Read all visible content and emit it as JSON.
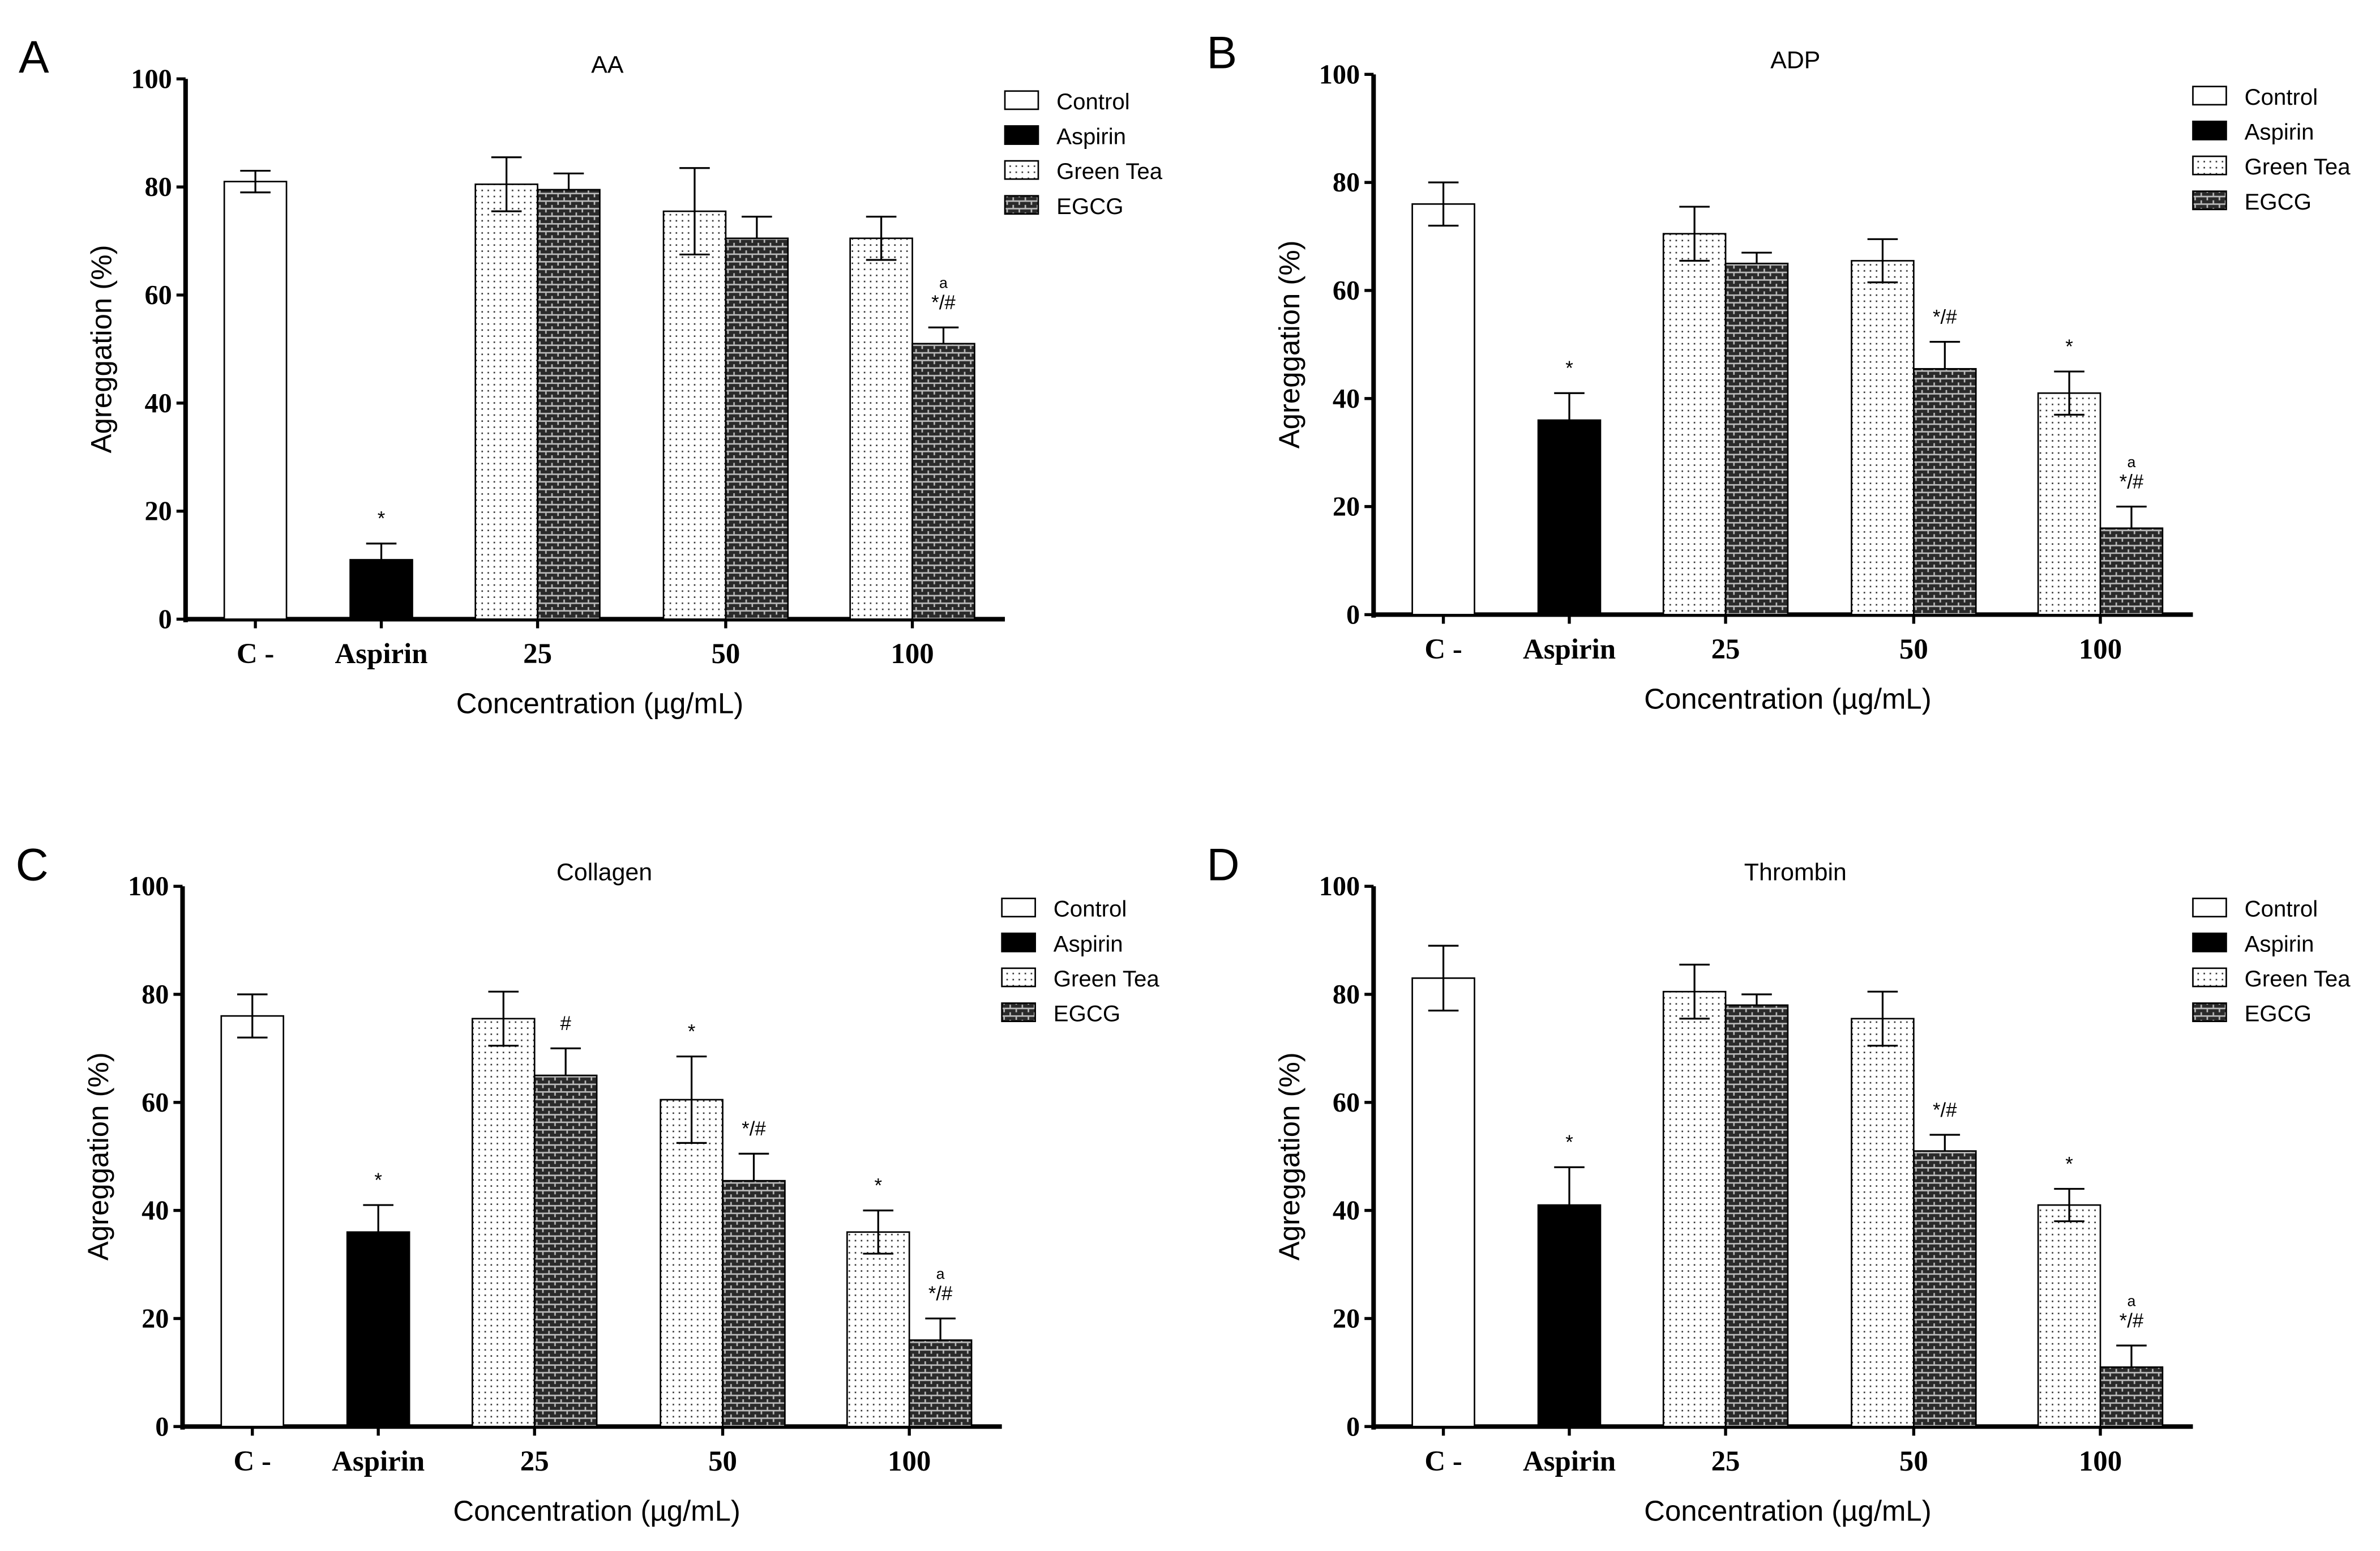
{
  "chart_data": [
    {
      "type": "bar",
      "panel_label": "A",
      "title": "AA",
      "xlabel": "Concentration (µg/mL)",
      "ylabel": "Agreggation (%)",
      "ylim": [
        0,
        100
      ],
      "yticks": [
        "0",
        "20",
        "40",
        "60",
        "80",
        "100"
      ],
      "categories": [
        "C -",
        "Aspirin",
        "25",
        "50",
        "100"
      ],
      "legend": [
        "Control",
        "Aspirin",
        "Green Tea",
        "EGCG"
      ],
      "legend_position": "top-right",
      "bars": [
        {
          "category": "C -",
          "series": "Control",
          "value": 81,
          "error": 2,
          "annotation": ""
        },
        {
          "category": "Aspirin",
          "series": "Aspirin",
          "value": 11,
          "error": 3,
          "annotation": "*"
        },
        {
          "category": "25",
          "series": "Green Tea",
          "value": 80.5,
          "error": 5,
          "annotation": ""
        },
        {
          "category": "25",
          "series": "EGCG",
          "value": 79.5,
          "error": 3,
          "annotation": ""
        },
        {
          "category": "50",
          "series": "Green Tea",
          "value": 75.5,
          "error": 8,
          "annotation": ""
        },
        {
          "category": "50",
          "series": "EGCG",
          "value": 70.5,
          "error": 4,
          "annotation": ""
        },
        {
          "category": "100",
          "series": "Green Tea",
          "value": 70.5,
          "error": 4,
          "annotation": ""
        },
        {
          "category": "100",
          "series": "EGCG",
          "value": 51,
          "error": 3,
          "annotation": "*/#",
          "annotation_top": "a"
        }
      ]
    },
    {
      "type": "bar",
      "panel_label": "B",
      "title": "ADP",
      "xlabel": "Concentration (µg/mL)",
      "ylabel": "Agreggation (%)",
      "ylim": [
        0,
        100
      ],
      "yticks": [
        "0",
        "20",
        "40",
        "60",
        "80",
        "100"
      ],
      "categories": [
        "C -",
        "Aspirin",
        "25",
        "50",
        "100"
      ],
      "legend": [
        "Control",
        "Aspirin",
        "Green Tea",
        "EGCG"
      ],
      "legend_position": "top-right",
      "bars": [
        {
          "category": "C -",
          "series": "Control",
          "value": 76,
          "error": 4,
          "annotation": ""
        },
        {
          "category": "Aspirin",
          "series": "Aspirin",
          "value": 36,
          "error": 5,
          "annotation": "*"
        },
        {
          "category": "25",
          "series": "Green Tea",
          "value": 70.5,
          "error": 5,
          "annotation": ""
        },
        {
          "category": "25",
          "series": "EGCG",
          "value": 65,
          "error": 2,
          "annotation": ""
        },
        {
          "category": "50",
          "series": "Green Tea",
          "value": 65.5,
          "error": 4,
          "annotation": ""
        },
        {
          "category": "50",
          "series": "EGCG",
          "value": 45.5,
          "error": 5,
          "annotation": "*/#"
        },
        {
          "category": "100",
          "series": "Green Tea",
          "value": 41,
          "error": 4,
          "annotation": "*"
        },
        {
          "category": "100",
          "series": "EGCG",
          "value": 16,
          "error": 4,
          "annotation": "*/#",
          "annotation_top": "a"
        }
      ]
    },
    {
      "type": "bar",
      "panel_label": "C",
      "title": "Collagen",
      "xlabel": "Concentration (µg/mL)",
      "ylabel": "Agreggation (%)",
      "ylim": [
        0,
        100
      ],
      "yticks": [
        "0",
        "20",
        "40",
        "60",
        "80",
        "100"
      ],
      "categories": [
        "C -",
        "Aspirin",
        "25",
        "50",
        "100"
      ],
      "legend": [
        "Control",
        "Aspirin",
        "Green Tea",
        "EGCG"
      ],
      "legend_position": "top-right",
      "bars": [
        {
          "category": "C -",
          "series": "Control",
          "value": 76,
          "error": 4,
          "annotation": ""
        },
        {
          "category": "Aspirin",
          "series": "Aspirin",
          "value": 36,
          "error": 5,
          "annotation": "*"
        },
        {
          "category": "25",
          "series": "Green Tea",
          "value": 75.5,
          "error": 5,
          "annotation": ""
        },
        {
          "category": "25",
          "series": "EGCG",
          "value": 65,
          "error": 5,
          "annotation": "#"
        },
        {
          "category": "50",
          "series": "Green Tea",
          "value": 60.5,
          "error": 8,
          "annotation": "*"
        },
        {
          "category": "50",
          "series": "EGCG",
          "value": 45.5,
          "error": 5,
          "annotation": "*/#"
        },
        {
          "category": "100",
          "series": "Green Tea",
          "value": 36,
          "error": 4,
          "annotation": "*"
        },
        {
          "category": "100",
          "series": "EGCG",
          "value": 16,
          "error": 4,
          "annotation": "*/#",
          "annotation_top": "a"
        }
      ]
    },
    {
      "type": "bar",
      "panel_label": "D",
      "title": "Thrombin",
      "xlabel": "Concentration (µg/mL)",
      "ylabel": "Agreggation (%)",
      "ylim": [
        0,
        100
      ],
      "yticks": [
        "0",
        "20",
        "40",
        "60",
        "80",
        "100"
      ],
      "categories": [
        "C -",
        "Aspirin",
        "25",
        "50",
        "100"
      ],
      "legend": [
        "Control",
        "Aspirin",
        "Green Tea",
        "EGCG"
      ],
      "legend_position": "top-right",
      "bars": [
        {
          "category": "C -",
          "series": "Control",
          "value": 83,
          "error": 6,
          "annotation": ""
        },
        {
          "category": "Aspirin",
          "series": "Aspirin",
          "value": 41,
          "error": 7,
          "annotation": "*"
        },
        {
          "category": "25",
          "series": "Green Tea",
          "value": 80.5,
          "error": 5,
          "annotation": ""
        },
        {
          "category": "25",
          "series": "EGCG",
          "value": 78,
          "error": 2,
          "annotation": ""
        },
        {
          "category": "50",
          "series": "Green Tea",
          "value": 75.5,
          "error": 5,
          "annotation": ""
        },
        {
          "category": "50",
          "series": "EGCG",
          "value": 51,
          "error": 3,
          "annotation": "*/#"
        },
        {
          "category": "100",
          "series": "Green Tea",
          "value": 41,
          "error": 3,
          "annotation": "*"
        },
        {
          "category": "100",
          "series": "EGCG",
          "value": 11,
          "error": 4,
          "annotation": "*/#",
          "annotation_top": "a"
        }
      ]
    }
  ]
}
